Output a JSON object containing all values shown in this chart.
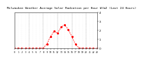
{
  "title": "Milwaukee Weather Average Solar Radiation per Hour W/m2 (Last 24 Hours)",
  "hours": [
    0,
    1,
    2,
    3,
    4,
    5,
    6,
    7,
    8,
    9,
    10,
    11,
    12,
    13,
    14,
    15,
    16,
    17,
    18,
    19,
    20,
    21,
    22,
    23
  ],
  "values": [
    0,
    0,
    0,
    0,
    0,
    0,
    0,
    0,
    5,
    50,
    130,
    190,
    170,
    240,
    260,
    210,
    130,
    45,
    5,
    0,
    0,
    0,
    0,
    0
  ],
  "line_color": "#ff0000",
  "bg_color": "#ffffff",
  "plot_bg": "#ffffff",
  "grid_color": "#888888",
  "ylim": [
    0,
    400
  ],
  "xlim": [
    0,
    23
  ],
  "title_fontsize": 3.2,
  "tick_fontsize": 3.0,
  "line_width": 0.6,
  "marker_size": 1.2
}
